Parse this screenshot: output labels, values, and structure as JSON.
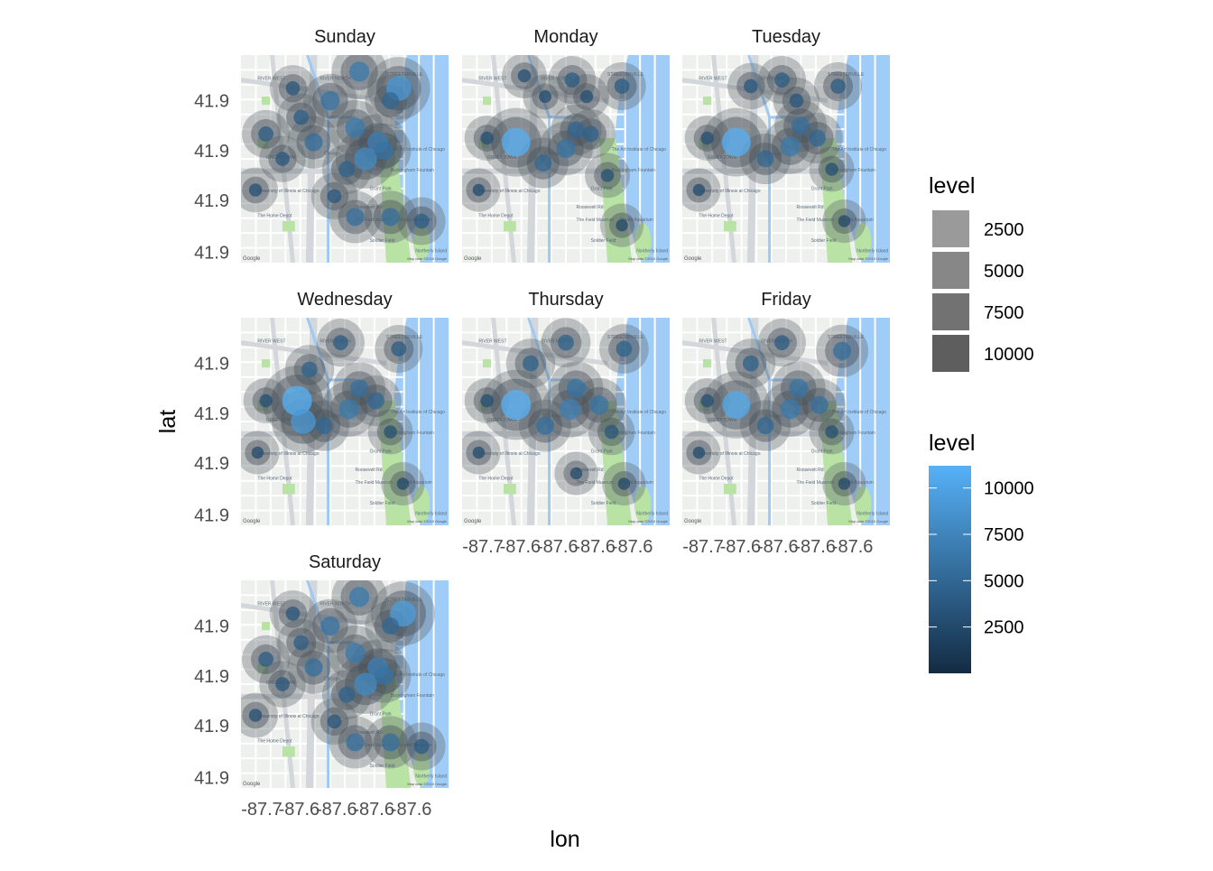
{
  "chart_data": {
    "type": "heatmap",
    "subtype": "faceted density-contour overlay on map tiles",
    "xlabel": "lon",
    "ylabel": "lat",
    "x_ticks": [
      "-87.7",
      "-87.6",
      "-87.6",
      "-87.6",
      "-87.6"
    ],
    "y_ticks": [
      "41.9",
      "41.9",
      "41.9",
      "41.9"
    ],
    "facets": [
      "Sunday",
      "Monday",
      "Tuesday",
      "Wednesday",
      "Thursday",
      "Friday",
      "Saturday"
    ],
    "facet_layout": {
      "columns": 3,
      "rows": 3
    },
    "x_axis_shown_under": [
      "Thursday",
      "Friday",
      "Saturday"
    ],
    "y_axis_shown_beside": [
      "Sunday",
      "Wednesday",
      "Saturday"
    ],
    "map": {
      "attribution_left": "Google",
      "attribution_right": "Map data ©2018 Google",
      "labels": [
        "RIVER WEST",
        "RIVER NORTH",
        "STREETERVILLE",
        "GREEKTOWN",
        "Chicago",
        "Grant Park",
        "The Field Museum",
        "Shedd Aquarium",
        "Soldier Field",
        "The Art Institute of Chicago",
        "Buckingham Fountain",
        "The Home Depot",
        "University of Illinois at Chicago",
        "Northerly Island",
        "Roosevelt Rd"
      ],
      "colors": {
        "land": "#eef0ee",
        "water": "#a0cdf8",
        "park": "#b9e3a5",
        "road": "#ffffff",
        "highway": "#d3d6da",
        "river": "#9ec9f2"
      }
    },
    "legend_alpha": {
      "title": "level",
      "entries": [
        {
          "label": "2500",
          "level": 2500,
          "color": "#9a9a9a"
        },
        {
          "label": "5000",
          "level": 5000,
          "color": "#878787"
        },
        {
          "label": "7500",
          "level": 7500,
          "color": "#727272"
        },
        {
          "label": "10000",
          "level": 10000,
          "color": "#5e5e5e"
        }
      ]
    },
    "legend_color": {
      "title": "level",
      "range": [
        0,
        11200
      ],
      "ticks": [
        {
          "label": "10000",
          "value": 10000
        },
        {
          "label": "7500",
          "value": 7500
        },
        {
          "label": "5000",
          "value": 5000
        },
        {
          "label": "2500",
          "value": 2500
        }
      ],
      "color_low": "#132b43",
      "color_high": "#56b1f7"
    },
    "hotspots": {
      "Sunday": [
        {
          "x": 0.76,
          "y": 0.16,
          "level": 9000
        },
        {
          "x": 0.57,
          "y": 0.08,
          "level": 6500
        },
        {
          "x": 0.43,
          "y": 0.22,
          "level": 6000
        },
        {
          "x": 0.55,
          "y": 0.35,
          "level": 6500
        },
        {
          "x": 0.35,
          "y": 0.42,
          "level": 5500
        },
        {
          "x": 0.66,
          "y": 0.42,
          "level": 7000
        },
        {
          "x": 0.6,
          "y": 0.5,
          "level": 8000
        },
        {
          "x": 0.69,
          "y": 0.46,
          "level": 6000
        },
        {
          "x": 0.51,
          "y": 0.55,
          "level": 4500
        },
        {
          "x": 0.12,
          "y": 0.38,
          "level": 4000
        },
        {
          "x": 0.2,
          "y": 0.5,
          "level": 3500
        },
        {
          "x": 0.25,
          "y": 0.16,
          "level": 3500
        },
        {
          "x": 0.72,
          "y": 0.22,
          "level": 5000
        },
        {
          "x": 0.55,
          "y": 0.78,
          "level": 5500
        },
        {
          "x": 0.72,
          "y": 0.78,
          "level": 5500
        },
        {
          "x": 0.87,
          "y": 0.8,
          "level": 4000
        },
        {
          "x": 0.07,
          "y": 0.65,
          "level": 3000
        },
        {
          "x": 0.45,
          "y": 0.68,
          "level": 3500
        },
        {
          "x": 0.29,
          "y": 0.3,
          "level": 4000
        }
      ],
      "Monday": [
        {
          "x": 0.26,
          "y": 0.42,
          "level": 11000
        },
        {
          "x": 0.5,
          "y": 0.45,
          "level": 6000
        },
        {
          "x": 0.55,
          "y": 0.36,
          "level": 5000
        },
        {
          "x": 0.39,
          "y": 0.52,
          "level": 5000
        },
        {
          "x": 0.62,
          "y": 0.38,
          "level": 4500
        },
        {
          "x": 0.53,
          "y": 0.12,
          "level": 4000
        },
        {
          "x": 0.77,
          "y": 0.15,
          "level": 4000
        },
        {
          "x": 0.3,
          "y": 0.1,
          "level": 3000
        },
        {
          "x": 0.12,
          "y": 0.4,
          "level": 3000
        },
        {
          "x": 0.7,
          "y": 0.58,
          "level": 3000
        },
        {
          "x": 0.6,
          "y": 0.2,
          "level": 3000
        },
        {
          "x": 0.77,
          "y": 0.82,
          "level": 2500
        },
        {
          "x": 0.4,
          "y": 0.2,
          "level": 2800
        },
        {
          "x": 0.08,
          "y": 0.65,
          "level": 2500
        }
      ],
      "Tuesday": [
        {
          "x": 0.26,
          "y": 0.42,
          "level": 11000
        },
        {
          "x": 0.52,
          "y": 0.44,
          "level": 6500
        },
        {
          "x": 0.57,
          "y": 0.34,
          "level": 5500
        },
        {
          "x": 0.4,
          "y": 0.5,
          "level": 5000
        },
        {
          "x": 0.65,
          "y": 0.4,
          "level": 5000
        },
        {
          "x": 0.48,
          "y": 0.12,
          "level": 4000
        },
        {
          "x": 0.75,
          "y": 0.15,
          "level": 4000
        },
        {
          "x": 0.33,
          "y": 0.15,
          "level": 3500
        },
        {
          "x": 0.12,
          "y": 0.4,
          "level": 3000
        },
        {
          "x": 0.72,
          "y": 0.55,
          "level": 3000
        },
        {
          "x": 0.78,
          "y": 0.8,
          "level": 2500
        },
        {
          "x": 0.55,
          "y": 0.22,
          "level": 3500
        },
        {
          "x": 0.08,
          "y": 0.65,
          "level": 2500
        }
      ],
      "Wednesday": [
        {
          "x": 0.27,
          "y": 0.4,
          "level": 11500
        },
        {
          "x": 0.3,
          "y": 0.5,
          "level": 9000
        },
        {
          "x": 0.52,
          "y": 0.44,
          "level": 6500
        },
        {
          "x": 0.57,
          "y": 0.34,
          "level": 5500
        },
        {
          "x": 0.4,
          "y": 0.52,
          "level": 5000
        },
        {
          "x": 0.65,
          "y": 0.4,
          "level": 5000
        },
        {
          "x": 0.48,
          "y": 0.12,
          "level": 4000
        },
        {
          "x": 0.76,
          "y": 0.15,
          "level": 4000
        },
        {
          "x": 0.33,
          "y": 0.25,
          "level": 4500
        },
        {
          "x": 0.12,
          "y": 0.4,
          "level": 3000
        },
        {
          "x": 0.72,
          "y": 0.55,
          "level": 3000
        },
        {
          "x": 0.78,
          "y": 0.8,
          "level": 2500
        },
        {
          "x": 0.08,
          "y": 0.65,
          "level": 2500
        }
      ],
      "Thursday": [
        {
          "x": 0.26,
          "y": 0.42,
          "level": 11500
        },
        {
          "x": 0.52,
          "y": 0.44,
          "level": 7000
        },
        {
          "x": 0.55,
          "y": 0.34,
          "level": 6000
        },
        {
          "x": 0.4,
          "y": 0.52,
          "level": 5500
        },
        {
          "x": 0.66,
          "y": 0.42,
          "level": 6000
        },
        {
          "x": 0.5,
          "y": 0.12,
          "level": 4500
        },
        {
          "x": 0.78,
          "y": 0.15,
          "level": 4500
        },
        {
          "x": 0.33,
          "y": 0.22,
          "level": 4500
        },
        {
          "x": 0.12,
          "y": 0.4,
          "level": 3000
        },
        {
          "x": 0.72,
          "y": 0.55,
          "level": 3500
        },
        {
          "x": 0.78,
          "y": 0.8,
          "level": 2500
        },
        {
          "x": 0.08,
          "y": 0.65,
          "level": 2500
        },
        {
          "x": 0.55,
          "y": 0.75,
          "level": 2500
        }
      ],
      "Friday": [
        {
          "x": 0.26,
          "y": 0.42,
          "level": 10500
        },
        {
          "x": 0.52,
          "y": 0.44,
          "level": 6500
        },
        {
          "x": 0.56,
          "y": 0.34,
          "level": 6000
        },
        {
          "x": 0.4,
          "y": 0.52,
          "level": 5000
        },
        {
          "x": 0.66,
          "y": 0.42,
          "level": 5500
        },
        {
          "x": 0.48,
          "y": 0.12,
          "level": 4000
        },
        {
          "x": 0.77,
          "y": 0.16,
          "level": 5500
        },
        {
          "x": 0.33,
          "y": 0.22,
          "level": 4500
        },
        {
          "x": 0.12,
          "y": 0.4,
          "level": 3000
        },
        {
          "x": 0.72,
          "y": 0.55,
          "level": 3000
        },
        {
          "x": 0.78,
          "y": 0.8,
          "level": 2500
        },
        {
          "x": 0.08,
          "y": 0.65,
          "level": 2500
        }
      ],
      "Saturday": [
        {
          "x": 0.78,
          "y": 0.16,
          "level": 9500
        },
        {
          "x": 0.57,
          "y": 0.08,
          "level": 6500
        },
        {
          "x": 0.43,
          "y": 0.22,
          "level": 6000
        },
        {
          "x": 0.55,
          "y": 0.35,
          "level": 6500
        },
        {
          "x": 0.35,
          "y": 0.42,
          "level": 5500
        },
        {
          "x": 0.66,
          "y": 0.42,
          "level": 7000
        },
        {
          "x": 0.6,
          "y": 0.5,
          "level": 8000
        },
        {
          "x": 0.69,
          "y": 0.46,
          "level": 6000
        },
        {
          "x": 0.51,
          "y": 0.55,
          "level": 4500
        },
        {
          "x": 0.12,
          "y": 0.38,
          "level": 4000
        },
        {
          "x": 0.2,
          "y": 0.5,
          "level": 3500
        },
        {
          "x": 0.25,
          "y": 0.16,
          "level": 3500
        },
        {
          "x": 0.72,
          "y": 0.22,
          "level": 5000
        },
        {
          "x": 0.55,
          "y": 0.78,
          "level": 5500
        },
        {
          "x": 0.72,
          "y": 0.78,
          "level": 5500
        },
        {
          "x": 0.87,
          "y": 0.8,
          "level": 4000
        },
        {
          "x": 0.07,
          "y": 0.65,
          "level": 3000
        },
        {
          "x": 0.45,
          "y": 0.68,
          "level": 3500
        },
        {
          "x": 0.29,
          "y": 0.3,
          "level": 4000
        }
      ]
    }
  }
}
